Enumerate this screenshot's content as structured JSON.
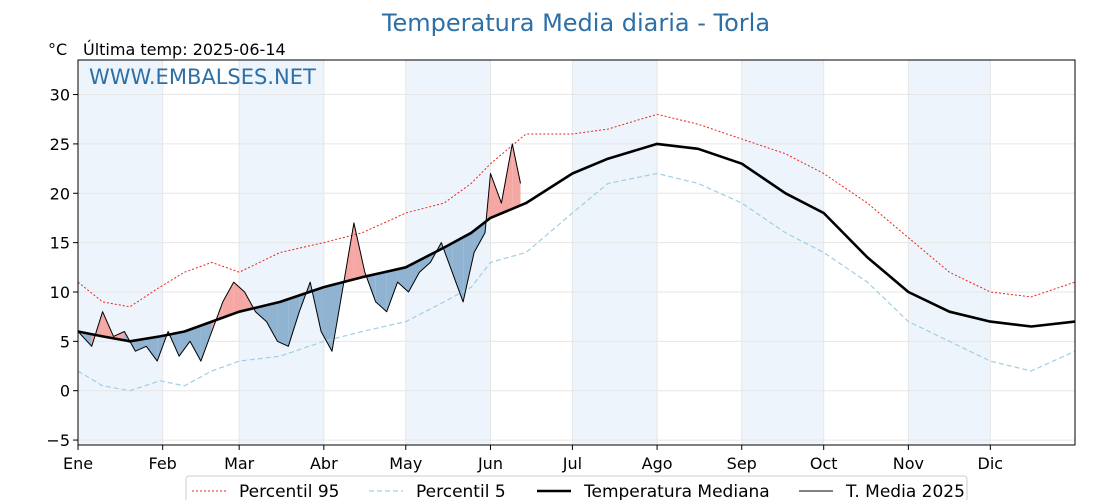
{
  "chart_data": {
    "type": "line",
    "title": "Temperatura Media diaria - Torla",
    "unit": "°C",
    "last_temp": "Última temp: 2025-06-14",
    "watermark": "WWW.EMBALSES.NET",
    "ylim": [
      -5.5,
      33.5
    ],
    "yticks": [
      -5,
      0,
      5,
      10,
      15,
      20,
      25,
      30
    ],
    "ytick_labels": [
      "−5",
      "0",
      "5",
      "10",
      "15",
      "20",
      "25",
      "30"
    ],
    "xlim": [
      1,
      366
    ],
    "months": [
      "Ene",
      "Feb",
      "Mar",
      "Abr",
      "May",
      "Jun",
      "Jul",
      "Ago",
      "Sep",
      "Oct",
      "Nov",
      "Dic"
    ],
    "month_start_days": [
      1,
      32,
      60,
      91,
      121,
      152,
      182,
      213,
      244,
      274,
      305,
      335
    ],
    "grid": true,
    "legend_position": "bottom",
    "series": [
      {
        "name": "Percentil 95",
        "style": "dotted",
        "color": "#e8251f",
        "points": [
          [
            1,
            11
          ],
          [
            10,
            9
          ],
          [
            20,
            8.5
          ],
          [
            31,
            10.5
          ],
          [
            40,
            12
          ],
          [
            50,
            13
          ],
          [
            60,
            12
          ],
          [
            75,
            14
          ],
          [
            91,
            15
          ],
          [
            105,
            16
          ],
          [
            121,
            18
          ],
          [
            135,
            19
          ],
          [
            145,
            21
          ],
          [
            152,
            23
          ],
          [
            165,
            26
          ],
          [
            182,
            26
          ],
          [
            195,
            26.5
          ],
          [
            213,
            28
          ],
          [
            228,
            27
          ],
          [
            244,
            25.5
          ],
          [
            260,
            24
          ],
          [
            274,
            22
          ],
          [
            290,
            19
          ],
          [
            305,
            15.5
          ],
          [
            320,
            12
          ],
          [
            335,
            10
          ],
          [
            350,
            9.5
          ],
          [
            366,
            11
          ]
        ]
      },
      {
        "name": "Percentil 5",
        "style": "dashed",
        "color": "#9fcfe3",
        "points": [
          [
            1,
            2
          ],
          [
            10,
            0.5
          ],
          [
            20,
            0
          ],
          [
            31,
            1
          ],
          [
            40,
            0.5
          ],
          [
            50,
            2
          ],
          [
            60,
            3
          ],
          [
            75,
            3.5
          ],
          [
            91,
            5
          ],
          [
            105,
            6
          ],
          [
            121,
            7
          ],
          [
            135,
            9
          ],
          [
            145,
            10.5
          ],
          [
            152,
            13
          ],
          [
            165,
            14
          ],
          [
            182,
            18
          ],
          [
            195,
            21
          ],
          [
            213,
            22
          ],
          [
            228,
            21
          ],
          [
            244,
            19
          ],
          [
            260,
            16
          ],
          [
            274,
            14
          ],
          [
            290,
            11
          ],
          [
            305,
            7
          ],
          [
            320,
            5
          ],
          [
            335,
            3
          ],
          [
            350,
            2
          ],
          [
            366,
            4
          ]
        ]
      },
      {
        "name": "Temperatura Mediana",
        "style": "solid-thick",
        "color": "#000000",
        "points": [
          [
            1,
            6
          ],
          [
            10,
            5.5
          ],
          [
            20,
            5
          ],
          [
            31,
            5.5
          ],
          [
            40,
            6
          ],
          [
            50,
            7
          ],
          [
            60,
            8
          ],
          [
            75,
            9
          ],
          [
            91,
            10.5
          ],
          [
            105,
            11.5
          ],
          [
            121,
            12.5
          ],
          [
            135,
            14.5
          ],
          [
            145,
            16
          ],
          [
            152,
            17.5
          ],
          [
            165,
            19
          ],
          [
            182,
            22
          ],
          [
            195,
            23.5
          ],
          [
            213,
            25
          ],
          [
            228,
            24.5
          ],
          [
            244,
            23
          ],
          [
            260,
            20
          ],
          [
            274,
            18
          ],
          [
            290,
            13.5
          ],
          [
            305,
            10
          ],
          [
            320,
            8
          ],
          [
            335,
            7
          ],
          [
            350,
            6.5
          ],
          [
            366,
            7
          ]
        ]
      },
      {
        "name": "T. Media 2025",
        "style": "solid-thin",
        "color": "#000000",
        "points": [
          [
            1,
            6
          ],
          [
            6,
            4.5
          ],
          [
            10,
            8
          ],
          [
            14,
            5.5
          ],
          [
            18,
            6
          ],
          [
            22,
            4
          ],
          [
            26,
            4.5
          ],
          [
            30,
            3
          ],
          [
            34,
            6
          ],
          [
            38,
            3.5
          ],
          [
            42,
            5
          ],
          [
            46,
            3
          ],
          [
            50,
            6
          ],
          [
            54,
            9
          ],
          [
            58,
            11
          ],
          [
            62,
            10
          ],
          [
            66,
            8
          ],
          [
            70,
            7
          ],
          [
            74,
            5
          ],
          [
            78,
            4.5
          ],
          [
            82,
            8
          ],
          [
            86,
            11
          ],
          [
            90,
            6
          ],
          [
            94,
            4
          ],
          [
            98,
            10.5
          ],
          [
            102,
            17
          ],
          [
            106,
            12
          ],
          [
            110,
            9
          ],
          [
            114,
            8
          ],
          [
            118,
            11
          ],
          [
            122,
            10
          ],
          [
            126,
            12
          ],
          [
            130,
            13
          ],
          [
            134,
            15
          ],
          [
            138,
            12
          ],
          [
            142,
            9
          ],
          [
            146,
            14
          ],
          [
            150,
            16
          ],
          [
            152,
            22
          ],
          [
            156,
            19
          ],
          [
            160,
            25
          ],
          [
            163,
            21
          ]
        ]
      }
    ],
    "legend": [
      {
        "name": "Percentil 95",
        "style": "dotted",
        "color": "#e8251f"
      },
      {
        "name": "Percentil 5",
        "style": "dashed",
        "color": "#9fcfe3"
      },
      {
        "name": "Temperatura Mediana",
        "style": "solid-thick",
        "color": "#000000"
      },
      {
        "name": "T. Media 2025",
        "style": "solid-thin",
        "color": "#000000"
      }
    ],
    "fill_colors": {
      "above": "#f4a7a3",
      "below": "#8fb3d1"
    },
    "shaded_month_color": "#eef4fb"
  }
}
